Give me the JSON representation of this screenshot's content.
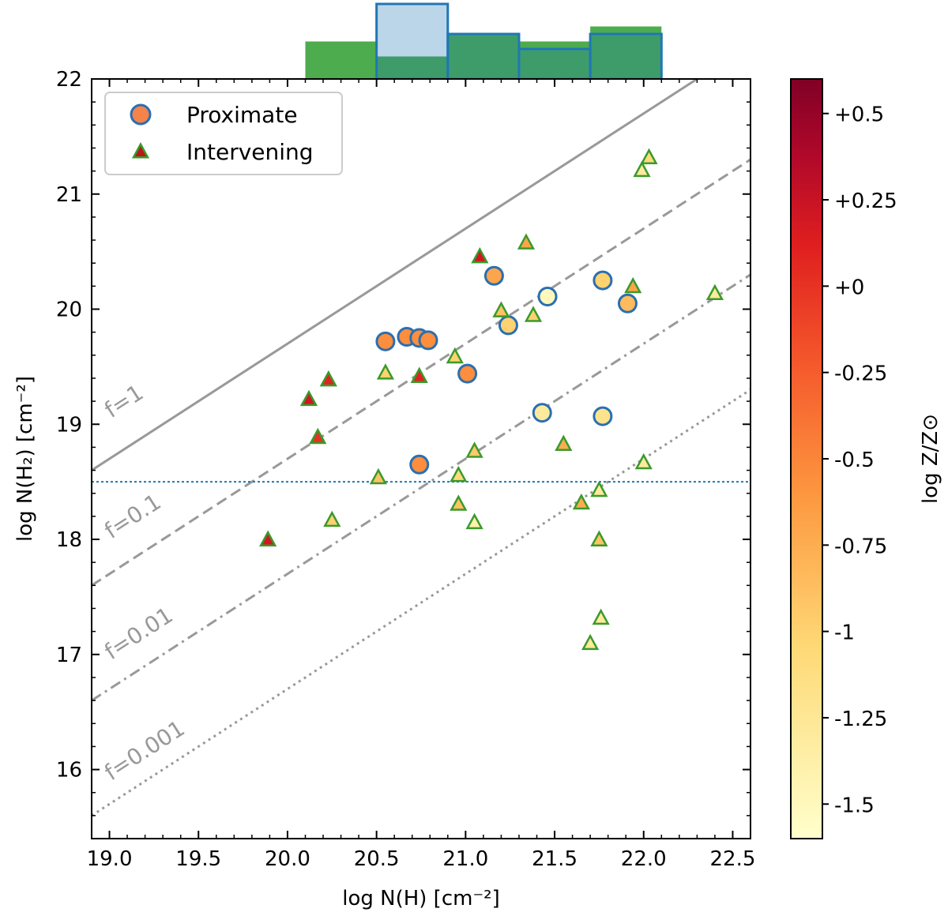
{
  "chart_data": {
    "type": "scatter",
    "xlabel": "log N(H) [cm⁻²]",
    "ylabel": "log N(H₂) [cm⁻²]",
    "xlim": [
      18.9,
      22.6
    ],
    "ylim": [
      15.4,
      22.0
    ],
    "xticks": [
      19.0,
      19.5,
      20.0,
      20.5,
      21.0,
      21.5,
      22.0,
      22.5
    ],
    "xtick_labels": [
      "19.0",
      "19.5",
      "20.0",
      "20.5",
      "21.0",
      "21.5",
      "22.0",
      "22.5"
    ],
    "yticks": [
      16,
      17,
      18,
      19,
      20,
      21,
      22
    ],
    "ytick_labels": [
      "16",
      "17",
      "18",
      "19",
      "20",
      "21",
      "22"
    ],
    "hline": {
      "y": 18.5,
      "color": "#1f77b4"
    },
    "fraction_lines": [
      {
        "f": 1,
        "label": "f=1",
        "log_offset": 0,
        "dash": "solid",
        "label_x": 19.0,
        "label_y": 19.05
      },
      {
        "f": 0.1,
        "label": "f=0.1",
        "log_offset": -1,
        "dash": "dashed",
        "label_x": 19.0,
        "label_y": 18.0
      },
      {
        "f": 0.01,
        "label": "f=0.01",
        "log_offset": -2,
        "dash": "dashdot",
        "label_x": 19.0,
        "label_y": 16.95
      },
      {
        "f": 0.001,
        "label": "f=0.001",
        "log_offset": -3,
        "dash": "dotted",
        "label_x": 19.0,
        "label_y": 15.9
      }
    ],
    "colorbar": {
      "label": "log Z/Z⊙",
      "range": [
        -1.6,
        0.6
      ],
      "ticks": [
        0.5,
        0.25,
        0,
        -0.25,
        -0.5,
        -0.75,
        -1,
        -1.25,
        -1.5
      ],
      "tick_labels": [
        "+0.5",
        "+0.25",
        "+0",
        "-0.25",
        "-0.5",
        "-0.75",
        "-1",
        "-1.25",
        "-1.5"
      ]
    },
    "legend": {
      "placement": "top-left",
      "entries": [
        {
          "label": "Proximate",
          "marker": "circle",
          "fill": "#f5834a",
          "edge": "#2a6fb0"
        },
        {
          "label": "Intervening",
          "marker": "triangle",
          "fill": "#b8171c",
          "edge": "#3a9a2a"
        }
      ]
    },
    "series": [
      {
        "name": "Proximate",
        "marker": "circle",
        "edge": "#2a6fb0",
        "points": [
          {
            "x": 20.55,
            "y": 19.72,
            "z": -0.55
          },
          {
            "x": 20.67,
            "y": 19.76,
            "z": -0.55
          },
          {
            "x": 20.74,
            "y": 19.75,
            "z": -0.55
          },
          {
            "x": 20.79,
            "y": 19.73,
            "z": -0.55
          },
          {
            "x": 21.01,
            "y": 19.44,
            "z": -0.55
          },
          {
            "x": 20.74,
            "y": 18.65,
            "z": -0.55
          },
          {
            "x": 21.16,
            "y": 20.29,
            "z": -0.7
          },
          {
            "x": 21.24,
            "y": 19.86,
            "z": -1.0
          },
          {
            "x": 21.46,
            "y": 20.11,
            "z": -1.5
          },
          {
            "x": 21.43,
            "y": 19.1,
            "z": -1.3
          },
          {
            "x": 21.77,
            "y": 20.25,
            "z": -1.0
          },
          {
            "x": 21.77,
            "y": 19.07,
            "z": -1.2
          },
          {
            "x": 21.91,
            "y": 20.05,
            "z": -0.85
          }
        ]
      },
      {
        "name": "Intervening",
        "marker": "triangle",
        "edge": "#3a9a2a",
        "points": [
          {
            "x": 19.89,
            "y": 17.99,
            "z": 0.2
          },
          {
            "x": 20.12,
            "y": 19.21,
            "z": 0.2
          },
          {
            "x": 20.17,
            "y": 18.88,
            "z": 0.0
          },
          {
            "x": 20.23,
            "y": 19.38,
            "z": 0.1
          },
          {
            "x": 20.25,
            "y": 18.16,
            "z": -1.0
          },
          {
            "x": 20.51,
            "y": 18.53,
            "z": -0.9
          },
          {
            "x": 20.55,
            "y": 19.44,
            "z": -1.0
          },
          {
            "x": 20.74,
            "y": 19.41,
            "z": 0.1
          },
          {
            "x": 20.94,
            "y": 19.58,
            "z": -1.0
          },
          {
            "x": 20.96,
            "y": 18.55,
            "z": -1.1
          },
          {
            "x": 20.96,
            "y": 18.3,
            "z": -0.9
          },
          {
            "x": 21.05,
            "y": 18.76,
            "z": -0.95
          },
          {
            "x": 21.05,
            "y": 18.14,
            "z": -1.4
          },
          {
            "x": 21.08,
            "y": 20.45,
            "z": 0.2
          },
          {
            "x": 21.2,
            "y": 19.98,
            "z": -0.9
          },
          {
            "x": 21.34,
            "y": 20.57,
            "z": -0.7
          },
          {
            "x": 21.38,
            "y": 19.94,
            "z": -1.0
          },
          {
            "x": 21.55,
            "y": 18.82,
            "z": -0.75
          },
          {
            "x": 21.65,
            "y": 18.31,
            "z": -0.75
          },
          {
            "x": 21.7,
            "y": 17.09,
            "z": -1.3
          },
          {
            "x": 21.75,
            "y": 18.42,
            "z": -1.3
          },
          {
            "x": 21.75,
            "y": 17.99,
            "z": -0.9
          },
          {
            "x": 21.76,
            "y": 17.31,
            "z": -1.3
          },
          {
            "x": 21.94,
            "y": 20.19,
            "z": -0.7
          },
          {
            "x": 21.99,
            "y": 21.2,
            "z": -1.3
          },
          {
            "x": 22.0,
            "y": 18.66,
            "z": -1.3
          },
          {
            "x": 22.03,
            "y": 21.31,
            "z": -1.1
          },
          {
            "x": 22.4,
            "y": 20.13,
            "z": -1.3
          }
        ]
      }
    ],
    "top_histogram": {
      "bin_edges": [
        20.1,
        20.5,
        20.9,
        21.3,
        21.7,
        22.1
      ],
      "series": [
        {
          "name": "Intervening",
          "color": "#3aa33a",
          "fill_opacity": 0.9,
          "counts": [
            5,
            3,
            6,
            5,
            7
          ]
        },
        {
          "name": "Proximate",
          "color": "#1f77b4",
          "fill_opacity": 0.3,
          "counts": [
            0,
            10,
            6,
            4,
            6
          ]
        }
      ]
    }
  }
}
